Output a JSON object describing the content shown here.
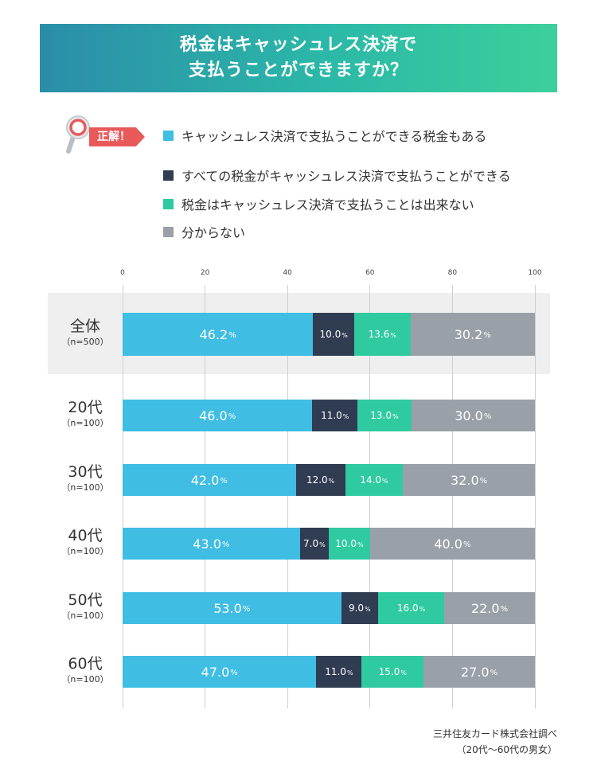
{
  "title": {
    "line1": "税金はキャッシュレス決済で",
    "line2": "支払うことができますか？"
  },
  "answer_tag": "正解！",
  "legend": [
    {
      "label": "キャッシュレス決済で支払うことができる税金もある",
      "color": "#3fbde3"
    },
    {
      "label": "すべての税金がキャッシュレス決済で支払うことができる",
      "color": "#2f3c52"
    },
    {
      "label": "税金はキャッシュレス決済で支払うことは出来ない",
      "color": "#2fcaa0"
    },
    {
      "label": "分からない",
      "color": "#9aa0a8"
    }
  ],
  "chart_data": {
    "type": "bar",
    "orientation": "horizontal",
    "stacked": true,
    "xlim": [
      0,
      100
    ],
    "x_ticks": [
      "0",
      "20",
      "40",
      "60",
      "80",
      "100"
    ],
    "grid": true,
    "percent_suffix": "%",
    "categories": [
      {
        "name": "全体",
        "n": "（n=500）"
      },
      {
        "name": "20代",
        "n": "（n=100）"
      },
      {
        "name": "30代",
        "n": "（n=100）"
      },
      {
        "name": "40代",
        "n": "（n=100）"
      },
      {
        "name": "50代",
        "n": "（n=100）"
      },
      {
        "name": "60代",
        "n": "（n=100）"
      }
    ],
    "series": [
      {
        "color": "#3fbde3",
        "values": [
          46.2,
          46.0,
          42.0,
          43.0,
          53.0,
          47.0
        ],
        "labels": [
          "46.2",
          "46.0",
          "42.0",
          "43.0",
          "53.0",
          "47.0"
        ]
      },
      {
        "color": "#2f3c52",
        "values": [
          10.0,
          11.0,
          12.0,
          7.0,
          9.0,
          11.0
        ],
        "labels": [
          "10.0",
          "11.0",
          "12.0",
          "7.0",
          "9.0",
          "11.0"
        ]
      },
      {
        "color": "#2fcaa0",
        "values": [
          13.6,
          13.0,
          14.0,
          10.0,
          16.0,
          15.0
        ],
        "labels": [
          "13.6",
          "13.0",
          "14.0",
          "10.0",
          "16.0",
          "15.0"
        ]
      },
      {
        "color": "#9aa0a8",
        "values": [
          30.2,
          30.0,
          32.0,
          40.0,
          22.0,
          27.0
        ],
        "labels": [
          "30.2",
          "30.0",
          "32.0",
          "40.0",
          "22.0",
          "27.0"
        ]
      }
    ]
  },
  "source": {
    "line1": "三井住友カード株式会社調べ",
    "line2": "（20代〜60代の男女）"
  }
}
